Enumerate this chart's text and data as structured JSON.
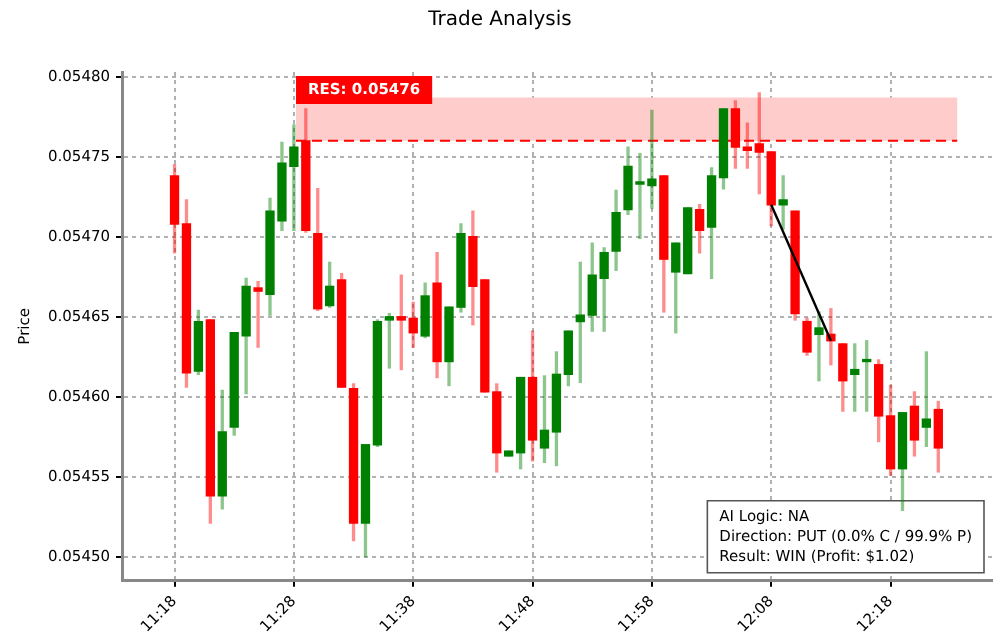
{
  "chart_data": {
    "type": "candlestick",
    "title": "Trade Analysis",
    "ylabel": "Price",
    "categories": [
      "11:18",
      null,
      null,
      null,
      null,
      null,
      null,
      null,
      null,
      null,
      "11:28",
      null,
      null,
      null,
      null,
      null,
      null,
      null,
      null,
      null,
      "11:38",
      null,
      null,
      null,
      null,
      null,
      null,
      null,
      null,
      null,
      "11:48",
      null,
      null,
      null,
      null,
      null,
      null,
      null,
      null,
      null,
      "11:58",
      null,
      null,
      null,
      null,
      null,
      null,
      null,
      null,
      null,
      "12:08",
      null,
      null,
      null,
      null,
      null,
      null,
      null,
      null,
      null,
      "12:18",
      null,
      null,
      null,
      null
    ],
    "ohlc": [
      [
        0.054738,
        0.054745,
        0.05469,
        0.054708
      ],
      [
        0.054708,
        0.054723,
        0.054606,
        0.054615
      ],
      [
        0.054616,
        0.054654,
        0.054614,
        0.054647
      ],
      [
        0.054648,
        0.054648,
        0.054521,
        0.054538
      ],
      [
        0.054538,
        0.054604,
        0.05453,
        0.054578
      ],
      [
        0.054581,
        0.05464,
        0.054576,
        0.05464
      ],
      [
        0.054638,
        0.054674,
        0.054602,
        0.054669
      ],
      [
        0.054668,
        0.054672,
        0.054631,
        0.054666
      ],
      [
        0.054664,
        0.054724,
        0.054651,
        0.054716
      ],
      [
        0.05471,
        0.054759,
        0.054704,
        0.054746
      ],
      [
        0.054744,
        0.05477,
        0.054704,
        0.054756
      ],
      [
        0.05476,
        0.05478,
        0.054703,
        0.054704
      ],
      [
        0.054702,
        0.05473,
        0.054654,
        0.054655
      ],
      [
        0.054657,
        0.054684,
        0.054656,
        0.054669
      ],
      [
        0.054673,
        0.054677,
        0.054606,
        0.054606
      ],
      [
        0.054605,
        0.054608,
        0.05451,
        0.054521
      ],
      [
        0.054521,
        0.05457,
        0.0545,
        0.05457
      ],
      [
        0.05457,
        0.054648,
        0.054569,
        0.054647
      ],
      [
        0.054648,
        0.054652,
        0.054618,
        0.05465
      ],
      [
        0.05465,
        0.054676,
        0.054617,
        0.054648
      ],
      [
        0.054649,
        0.054659,
        0.054631,
        0.05464
      ],
      [
        0.054638,
        0.054671,
        0.054637,
        0.054663
      ],
      [
        0.054671,
        0.05469,
        0.054612,
        0.054622
      ],
      [
        0.054622,
        0.054656,
        0.054607,
        0.054656
      ],
      [
        0.054656,
        0.054708,
        0.054653,
        0.054702
      ],
      [
        0.0547,
        0.054716,
        0.054645,
        0.054669
      ],
      [
        0.054673,
        0.054673,
        0.054603,
        0.054603
      ],
      [
        0.054603,
        0.054608,
        0.054553,
        0.054565
      ],
      [
        0.054563,
        0.054566,
        0.054563,
        0.054566
      ],
      [
        0.054565,
        0.054612,
        0.054555,
        0.054612
      ],
      [
        0.054612,
        0.054641,
        0.05456,
        0.054573
      ],
      [
        0.054568,
        0.054613,
        0.054559,
        0.054579
      ],
      [
        0.054578,
        0.054628,
        0.054557,
        0.054614
      ],
      [
        0.054614,
        0.054641,
        0.054607,
        0.054641
      ],
      [
        0.054647,
        0.054684,
        0.054609,
        0.054651
      ],
      [
        0.054651,
        0.054696,
        0.054641,
        0.054676
      ],
      [
        0.054674,
        0.054693,
        0.054641,
        0.05469
      ],
      [
        0.054691,
        0.054729,
        0.054679,
        0.054715
      ],
      [
        0.054717,
        0.054756,
        0.054714,
        0.054744
      ],
      [
        0.054733,
        0.054752,
        0.054699,
        0.054734
      ],
      [
        0.054732,
        0.054779,
        0.054718,
        0.054736
      ],
      [
        0.054738,
        0.054738,
        0.054653,
        0.054686
      ],
      [
        0.054678,
        0.054696,
        0.05464,
        0.054696
      ],
      [
        0.054677,
        0.054718,
        0.054677,
        0.054718
      ],
      [
        0.054717,
        0.05472,
        0.05469,
        0.054704
      ],
      [
        0.054706,
        0.054743,
        0.054674,
        0.054738
      ],
      [
        0.054737,
        0.05478,
        0.05473,
        0.05478
      ],
      [
        0.05478,
        0.054785,
        0.054743,
        0.054756
      ],
      [
        0.054756,
        0.054771,
        0.054743,
        0.054754
      ],
      [
        0.054758,
        0.05479,
        0.054727,
        0.054753
      ],
      [
        0.054753,
        0.054753,
        0.054707,
        0.05472
      ],
      [
        0.05472,
        0.054738,
        0.054705,
        0.054723
      ],
      [
        0.054716,
        0.054716,
        0.054648,
        0.054652
      ],
      [
        0.054647,
        0.054649,
        0.054626,
        0.054628
      ],
      [
        0.054639,
        0.054653,
        0.05461,
        0.054643
      ],
      [
        0.054639,
        0.054655,
        0.05462,
        0.054635
      ],
      [
        0.054633,
        0.054633,
        0.054591,
        0.05461
      ],
      [
        0.054614,
        0.054633,
        0.054591,
        0.054617
      ],
      [
        0.054622,
        0.054635,
        0.054591,
        0.054623
      ],
      [
        0.05462,
        0.054623,
        0.054572,
        0.054588
      ],
      [
        0.054588,
        0.054607,
        0.054551,
        0.054555
      ],
      [
        0.054555,
        0.05459,
        0.054529,
        0.05459
      ],
      [
        0.054594,
        0.054603,
        0.054563,
        0.054573
      ],
      [
        0.054581,
        0.054628,
        0.054569,
        0.054586
      ],
      [
        0.054592,
        0.054597,
        0.054553,
        0.054568
      ]
    ],
    "colors": [
      "#ff0000",
      "#ff0000",
      "#008000",
      "#ff0000",
      "#008000",
      "#008000",
      "#008000",
      "#ff0000",
      "#008000",
      "#008000",
      "#008000",
      "#ff0000",
      "#ff0000",
      "#008000",
      "#ff0000",
      "#ff0000",
      "#008000",
      "#008000",
      "#008000",
      "#ff0000",
      "#ff0000",
      "#008000",
      "#ff0000",
      "#008000",
      "#008000",
      "#ff0000",
      "#ff0000",
      "#ff0000",
      "#008000",
      "#008000",
      "#ff0000",
      "#008000",
      "#008000",
      "#008000",
      "#008000",
      "#008000",
      "#008000",
      "#008000",
      "#008000",
      "#008000",
      "#008000",
      "#ff0000",
      "#008000",
      "#008000",
      "#ff0000",
      "#008000",
      "#008000",
      "#ff0000",
      "#ff0000",
      "#ff0000",
      "#ff0000",
      "#008000",
      "#ff0000",
      "#ff0000",
      "#008000",
      "#ff0000",
      "#ff0000",
      "#008000",
      "#008000",
      "#ff0000",
      "#ff0000",
      "#008000",
      "#ff0000",
      "#008000",
      "#ff0000"
    ],
    "series": [
      {
        "type": "line",
        "color": "#000000",
        "values": [
          null,
          null,
          null,
          null,
          null,
          null,
          null,
          null,
          null,
          null,
          null,
          null,
          null,
          null,
          null,
          null,
          null,
          null,
          null,
          null,
          null,
          null,
          null,
          null,
          null,
          null,
          null,
          null,
          null,
          null,
          null,
          null,
          null,
          null,
          null,
          null,
          null,
          null,
          null,
          null,
          null,
          null,
          null,
          null,
          null,
          null,
          null,
          null,
          null,
          null,
          0.05472,
          null,
          null,
          null,
          null,
          0.054635,
          null,
          null,
          null,
          null,
          null,
          null,
          null,
          null,
          null
        ]
      }
    ],
    "ylim": [
      0.054485,
      0.054803
    ],
    "yticks": [
      {
        "value": 0.0545,
        "label": "0.05450"
      },
      {
        "value": 0.05455,
        "label": "0.05455"
      },
      {
        "value": 0.0546,
        "label": "0.05460"
      },
      {
        "value": 0.05465,
        "label": "0.05465"
      },
      {
        "value": 0.0547,
        "label": "0.05470"
      },
      {
        "value": 0.05475,
        "label": "0.05475"
      },
      {
        "value": 0.0548,
        "label": "0.05480"
      }
    ],
    "ref_lines": [
      {
        "axis": "y",
        "value": 0.05476,
        "label": "RES: 0.05476",
        "color": "#ff0000",
        "line_style": "dashed"
      }
    ],
    "bands": [
      {
        "axis": "y",
        "from": 0.05476,
        "to": 0.054787,
        "color": "#ffcccc"
      }
    ],
    "annotations": [
      "AI Logic: NA",
      "Direction: PUT (0.0% C / 99.9% P)",
      "Result: WIN (Profit: $1.02)"
    ],
    "grid": true,
    "legend": false
  }
}
